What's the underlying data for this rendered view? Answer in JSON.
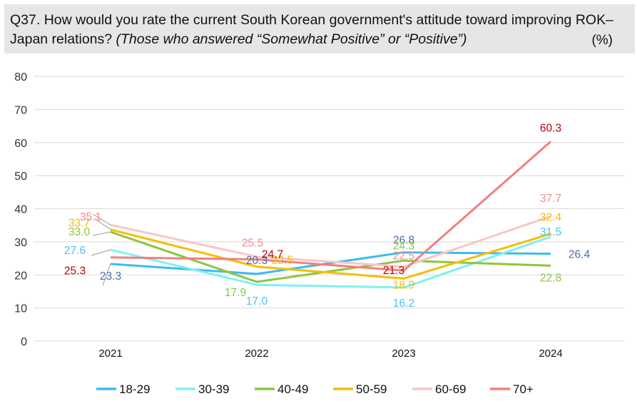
{
  "title": {
    "main": "Q37. How would you rate the current South Korean government's attitude toward improving ROK–Japan relations?",
    "note": "(Those who answered “Somewhat Positive” or “Positive”)",
    "unit": "(%)"
  },
  "chart_data": {
    "type": "line",
    "x": [
      "2021",
      "2022",
      "2023",
      "2024"
    ],
    "ylim": [
      0,
      80
    ],
    "yticks": [
      0,
      10,
      20,
      30,
      40,
      50,
      60,
      70,
      80
    ],
    "grid": true,
    "legend": "bottom",
    "series": [
      {
        "name": "18-29",
        "color": "#3bbcf0",
        "label_color": "#4a6fb0",
        "values": [
          23.3,
          20.3,
          26.8,
          26.4
        ]
      },
      {
        "name": "30-39",
        "color": "#7ff0f4",
        "label_color": "#4cc3ee",
        "values": [
          27.6,
          17.0,
          16.2,
          31.5
        ]
      },
      {
        "name": "40-49",
        "color": "#8cc63f",
        "label_color": "#8cc63f",
        "values": [
          33.0,
          17.9,
          24.3,
          22.8
        ]
      },
      {
        "name": "50-59",
        "color": "#f5be00",
        "label_color": "#f5be00",
        "values": [
          33.7,
          22.5,
          18.9,
          32.4
        ]
      },
      {
        "name": "60-69",
        "color": "#f8c6c6",
        "label_color": "#f08c8c",
        "values": [
          35.1,
          25.5,
          22.5,
          37.7
        ]
      },
      {
        "name": "70+",
        "color": "#f08080",
        "label_color": "#c00000",
        "values": [
          25.3,
          24.7,
          21.3,
          60.3
        ]
      }
    ]
  }
}
